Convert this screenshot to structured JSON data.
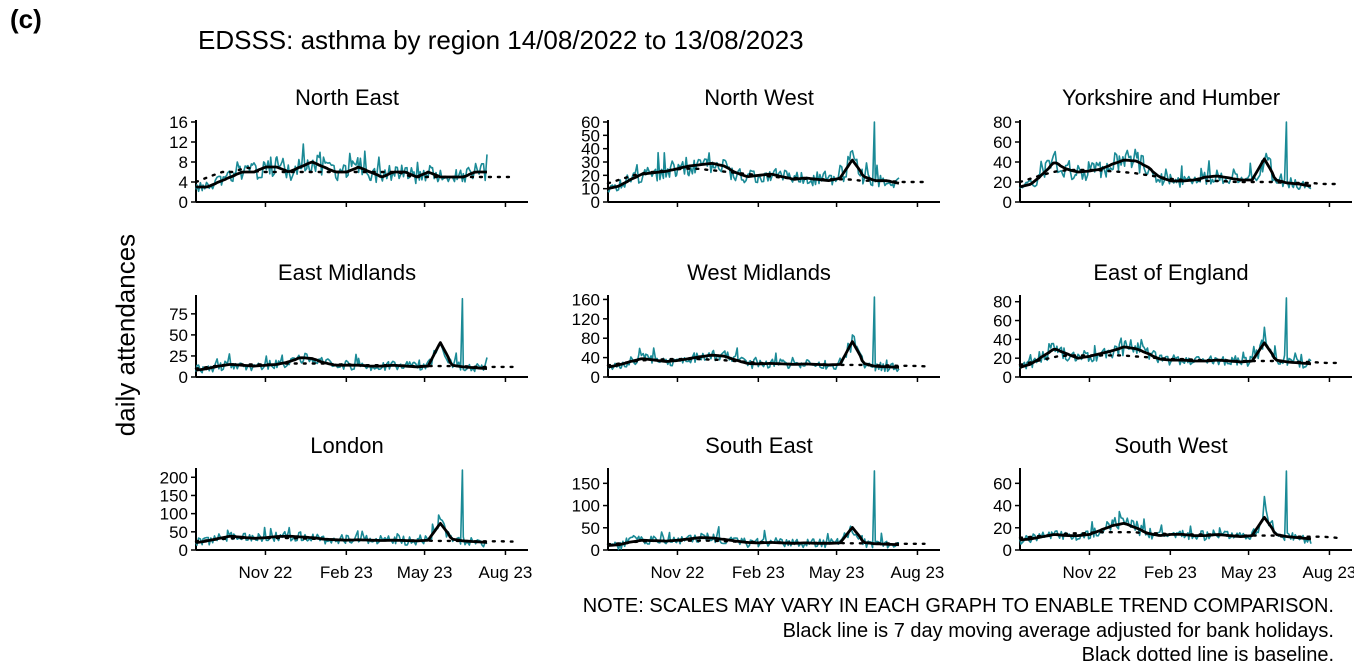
{
  "figure": {
    "panel_label": "(c)",
    "title": "EDSSS: asthma by region 14/08/2022 to 13/08/2023",
    "ylabel": "daily attendances",
    "notes": [
      "NOTE: SCALES MAY VARY IN EACH GRAPH TO ENABLE TREND COMPARISON.",
      "Black line is 7 day moving average adjusted for bank holidays.",
      "Black dotted line is baseline."
    ]
  },
  "colors": {
    "daily": "#1a8a96",
    "average": "#000000",
    "baseline": "#000000"
  },
  "chart_data": [
    {
      "type": "line",
      "title": "North East",
      "yticks": [
        0,
        4,
        8,
        12,
        16
      ],
      "ylim": [
        0,
        16
      ],
      "xticks": [
        "Nov 22",
        "Feb 23",
        "May 23",
        "Aug 23"
      ],
      "xlim": [
        "2022-08-14",
        "2023-08-13"
      ],
      "series": [
        {
          "role": "daily",
          "values": [
            3,
            3,
            4,
            5,
            6,
            6,
            7,
            7,
            6,
            7,
            8,
            7,
            6,
            6,
            7,
            6,
            5,
            6,
            6,
            5,
            6,
            5,
            5,
            5,
            6,
            6
          ]
        },
        {
          "role": "average",
          "values": [
            3,
            3,
            4,
            5,
            6,
            6,
            7,
            7,
            6,
            7,
            8,
            7,
            6,
            6,
            7,
            6,
            5,
            6,
            6,
            5,
            6,
            5,
            5,
            5,
            6,
            6
          ]
        },
        {
          "role": "baseline",
          "values": [
            4,
            5,
            6,
            6,
            7,
            6,
            6,
            6,
            6,
            6,
            6,
            6,
            6,
            6,
            6,
            6,
            6,
            5,
            5,
            5,
            5,
            5,
            5,
            5,
            5,
            5
          ]
        }
      ],
      "peaks": []
    },
    {
      "type": "line",
      "title": "North West",
      "yticks": [
        0,
        10,
        20,
        30,
        40,
        50,
        60
      ],
      "ylim": [
        0,
        60
      ],
      "xticks": [
        "Nov 22",
        "Feb 23",
        "May 23",
        "Aug 23"
      ],
      "xlim": [
        "2022-08-14",
        "2023-08-13"
      ],
      "series": [
        {
          "role": "daily",
          "values": [
            10,
            12,
            17,
            21,
            22,
            23,
            25,
            27,
            28,
            29,
            27,
            22,
            19,
            20,
            21,
            19,
            17,
            18,
            17,
            16,
            18,
            32,
            19,
            16,
            16,
            14
          ]
        },
        {
          "role": "average",
          "values": [
            10,
            12,
            17,
            21,
            22,
            23,
            25,
            27,
            28,
            29,
            27,
            22,
            19,
            20,
            21,
            19,
            17,
            18,
            17,
            16,
            18,
            32,
            19,
            16,
            16,
            14
          ]
        },
        {
          "role": "baseline",
          "values": [
            14,
            17,
            20,
            22,
            23,
            24,
            25,
            25,
            24,
            23,
            22,
            21,
            20,
            19,
            18,
            18,
            17,
            17,
            17,
            17,
            16,
            16,
            16,
            15,
            15,
            15
          ]
        }
      ],
      "peaks": [
        {
          "x": "2023-06-13",
          "y": 60
        }
      ]
    },
    {
      "type": "line",
      "title": "Yorkshire and Humber",
      "yticks": [
        0,
        20,
        40,
        60,
        80
      ],
      "ylim": [
        0,
        80
      ],
      "xticks": [
        "Nov 22",
        "Feb 23",
        "May 23",
        "Aug 23"
      ],
      "xlim": [
        "2022-08-14",
        "2023-08-13"
      ],
      "series": [
        {
          "role": "daily",
          "values": [
            15,
            18,
            28,
            40,
            33,
            30,
            31,
            33,
            38,
            42,
            41,
            35,
            25,
            21,
            21,
            22,
            25,
            26,
            24,
            22,
            22,
            44,
            22,
            19,
            18,
            16
          ]
        },
        {
          "role": "average",
          "values": [
            15,
            18,
            28,
            40,
            33,
            30,
            31,
            33,
            38,
            42,
            41,
            35,
            25,
            21,
            21,
            22,
            25,
            26,
            24,
            22,
            22,
            44,
            22,
            19,
            18,
            16
          ]
        },
        {
          "role": "baseline",
          "values": [
            20,
            24,
            28,
            31,
            32,
            32,
            32,
            31,
            30,
            29,
            27,
            25,
            23,
            22,
            22,
            21,
            21,
            20,
            20,
            20,
            20,
            19,
            19,
            19,
            18,
            18
          ]
        }
      ],
      "peaks": [
        {
          "x": "2023-06-13",
          "y": 80
        }
      ]
    },
    {
      "type": "line",
      "title": "East Midlands",
      "yticks": [
        0,
        25,
        50,
        75
      ],
      "ylim": [
        0,
        95
      ],
      "xticks": [
        "Nov 22",
        "Feb 23",
        "May 23",
        "Aug 23"
      ],
      "xlim": [
        "2022-08-14",
        "2023-08-13"
      ],
      "series": [
        {
          "role": "daily",
          "values": [
            8,
            10,
            13,
            15,
            14,
            13,
            14,
            15,
            18,
            23,
            22,
            17,
            14,
            14,
            14,
            13,
            13,
            14,
            13,
            12,
            13,
            42,
            14,
            12,
            11,
            10
          ]
        },
        {
          "role": "average",
          "values": [
            8,
            10,
            13,
            15,
            14,
            13,
            14,
            15,
            18,
            23,
            22,
            17,
            14,
            14,
            14,
            13,
            13,
            14,
            13,
            12,
            13,
            42,
            14,
            12,
            11,
            10
          ]
        },
        {
          "role": "baseline",
          "values": [
            10,
            12,
            14,
            15,
            15,
            15,
            15,
            16,
            16,
            16,
            16,
            15,
            15,
            14,
            14,
            14,
            14,
            13,
            13,
            13,
            13,
            13,
            12,
            12,
            12,
            12
          ]
        }
      ],
      "peaks": [
        {
          "x": "2023-06-13",
          "y": 93
        }
      ]
    },
    {
      "type": "line",
      "title": "West Midlands",
      "yticks": [
        0,
        40,
        80,
        120,
        160
      ],
      "ylim": [
        0,
        165
      ],
      "xticks": [
        "Nov 22",
        "Feb 23",
        "May 23",
        "Aug 23"
      ],
      "xlim": [
        "2022-08-14",
        "2023-08-13"
      ],
      "series": [
        {
          "role": "daily",
          "values": [
            20,
            25,
            32,
            38,
            35,
            32,
            34,
            38,
            42,
            45,
            43,
            35,
            28,
            27,
            28,
            27,
            26,
            27,
            26,
            25,
            26,
            75,
            28,
            22,
            21,
            20
          ]
        },
        {
          "role": "average",
          "values": [
            20,
            25,
            32,
            38,
            35,
            32,
            34,
            38,
            42,
            45,
            43,
            35,
            28,
            27,
            28,
            27,
            26,
            27,
            26,
            25,
            26,
            75,
            28,
            22,
            21,
            20
          ]
        },
        {
          "role": "baseline",
          "values": [
            24,
            28,
            32,
            35,
            36,
            37,
            37,
            37,
            36,
            35,
            33,
            31,
            29,
            28,
            27,
            27,
            26,
            26,
            25,
            25,
            25,
            24,
            24,
            23,
            23,
            22
          ]
        }
      ],
      "peaks": [
        {
          "x": "2023-06-13",
          "y": 165
        }
      ]
    },
    {
      "type": "line",
      "title": "East of England",
      "yticks": [
        0,
        20,
        40,
        60,
        80
      ],
      "ylim": [
        0,
        85
      ],
      "xticks": [
        "Nov 22",
        "Feb 23",
        "May 23",
        "Aug 23"
      ],
      "xlim": [
        "2022-08-14",
        "2023-08-13"
      ],
      "series": [
        {
          "role": "daily",
          "values": [
            10,
            14,
            22,
            30,
            25,
            20,
            22,
            25,
            28,
            32,
            30,
            25,
            19,
            18,
            18,
            17,
            17,
            18,
            17,
            16,
            17,
            37,
            18,
            16,
            15,
            14
          ]
        },
        {
          "role": "average",
          "values": [
            10,
            14,
            22,
            30,
            25,
            20,
            22,
            25,
            28,
            32,
            30,
            25,
            19,
            18,
            18,
            17,
            17,
            18,
            17,
            16,
            17,
            37,
            18,
            16,
            15,
            14
          ]
        },
        {
          "role": "baseline",
          "values": [
            13,
            16,
            19,
            22,
            23,
            23,
            23,
            23,
            23,
            22,
            21,
            20,
            19,
            19,
            18,
            18,
            18,
            17,
            17,
            17,
            17,
            16,
            16,
            16,
            15,
            15
          ]
        }
      ],
      "peaks": [
        {
          "x": "2023-06-13",
          "y": 84
        }
      ]
    },
    {
      "type": "line",
      "title": "London",
      "yticks": [
        0,
        50,
        100,
        150,
        200
      ],
      "ylim": [
        0,
        220
      ],
      "xticks": [
        "Nov 22",
        "Feb 23",
        "May 23",
        "Aug 23"
      ],
      "xlim": [
        "2022-08-14",
        "2023-08-13"
      ],
      "series": [
        {
          "role": "daily",
          "values": [
            20,
            25,
            32,
            38,
            35,
            32,
            34,
            37,
            38,
            36,
            34,
            30,
            28,
            27,
            28,
            27,
            26,
            27,
            26,
            25,
            27,
            75,
            30,
            25,
            23,
            21
          ]
        },
        {
          "role": "average",
          "values": [
            20,
            25,
            32,
            38,
            35,
            32,
            34,
            37,
            38,
            36,
            34,
            30,
            28,
            27,
            28,
            27,
            26,
            27,
            26,
            25,
            27,
            75,
            30,
            25,
            23,
            21
          ]
        },
        {
          "role": "baseline",
          "values": [
            24,
            27,
            30,
            32,
            33,
            33,
            33,
            33,
            32,
            31,
            30,
            29,
            28,
            28,
            27,
            27,
            26,
            26,
            26,
            25,
            25,
            25,
            24,
            24,
            24,
            23
          ]
        }
      ],
      "peaks": [
        {
          "x": "2023-06-13",
          "y": 220
        }
      ]
    },
    {
      "type": "line",
      "title": "South East",
      "yticks": [
        0,
        50,
        100,
        150
      ],
      "ylim": [
        0,
        180
      ],
      "xticks": [
        "Nov 22",
        "Feb 23",
        "May 23",
        "Aug 23"
      ],
      "xlim": [
        "2022-08-14",
        "2023-08-13"
      ],
      "series": [
        {
          "role": "daily",
          "values": [
            10,
            12,
            18,
            22,
            21,
            20,
            22,
            25,
            28,
            27,
            24,
            20,
            17,
            16,
            17,
            16,
            15,
            16,
            15,
            15,
            16,
            52,
            17,
            14,
            13,
            12
          ]
        },
        {
          "role": "average",
          "values": [
            10,
            12,
            18,
            22,
            21,
            20,
            22,
            25,
            28,
            27,
            24,
            20,
            17,
            16,
            17,
            16,
            15,
            16,
            15,
            15,
            16,
            52,
            17,
            14,
            13,
            12
          ]
        },
        {
          "role": "baseline",
          "values": [
            13,
            15,
            18,
            20,
            21,
            21,
            21,
            21,
            21,
            20,
            19,
            18,
            18,
            17,
            17,
            16,
            16,
            16,
            16,
            15,
            15,
            15,
            15,
            14,
            14,
            14
          ]
        }
      ],
      "peaks": [
        {
          "x": "2023-06-13",
          "y": 178
        }
      ]
    },
    {
      "type": "line",
      "title": "South West",
      "yticks": [
        0,
        20,
        40,
        60
      ],
      "ylim": [
        0,
        72
      ],
      "xticks": [
        "Nov 22",
        "Feb 23",
        "May 23",
        "Aug 23"
      ],
      "xlim": [
        "2022-08-14",
        "2023-08-13"
      ],
      "series": [
        {
          "role": "daily",
          "values": [
            9,
            10,
            12,
            14,
            13,
            13,
            14,
            18,
            22,
            24,
            20,
            15,
            13,
            14,
            14,
            13,
            13,
            14,
            13,
            12,
            13,
            30,
            14,
            12,
            11,
            10
          ]
        },
        {
          "role": "average",
          "values": [
            9,
            10,
            12,
            14,
            13,
            13,
            14,
            18,
            22,
            24,
            20,
            15,
            13,
            14,
            14,
            13,
            13,
            14,
            13,
            12,
            13,
            30,
            14,
            12,
            11,
            10
          ]
        },
        {
          "role": "baseline",
          "values": [
            11,
            12,
            13,
            14,
            15,
            15,
            16,
            16,
            16,
            16,
            15,
            15,
            14,
            14,
            14,
            14,
            13,
            13,
            13,
            13,
            13,
            12,
            12,
            12,
            12,
            11
          ]
        }
      ],
      "peaks": [
        {
          "x": "2023-06-13",
          "y": 71
        }
      ]
    }
  ]
}
